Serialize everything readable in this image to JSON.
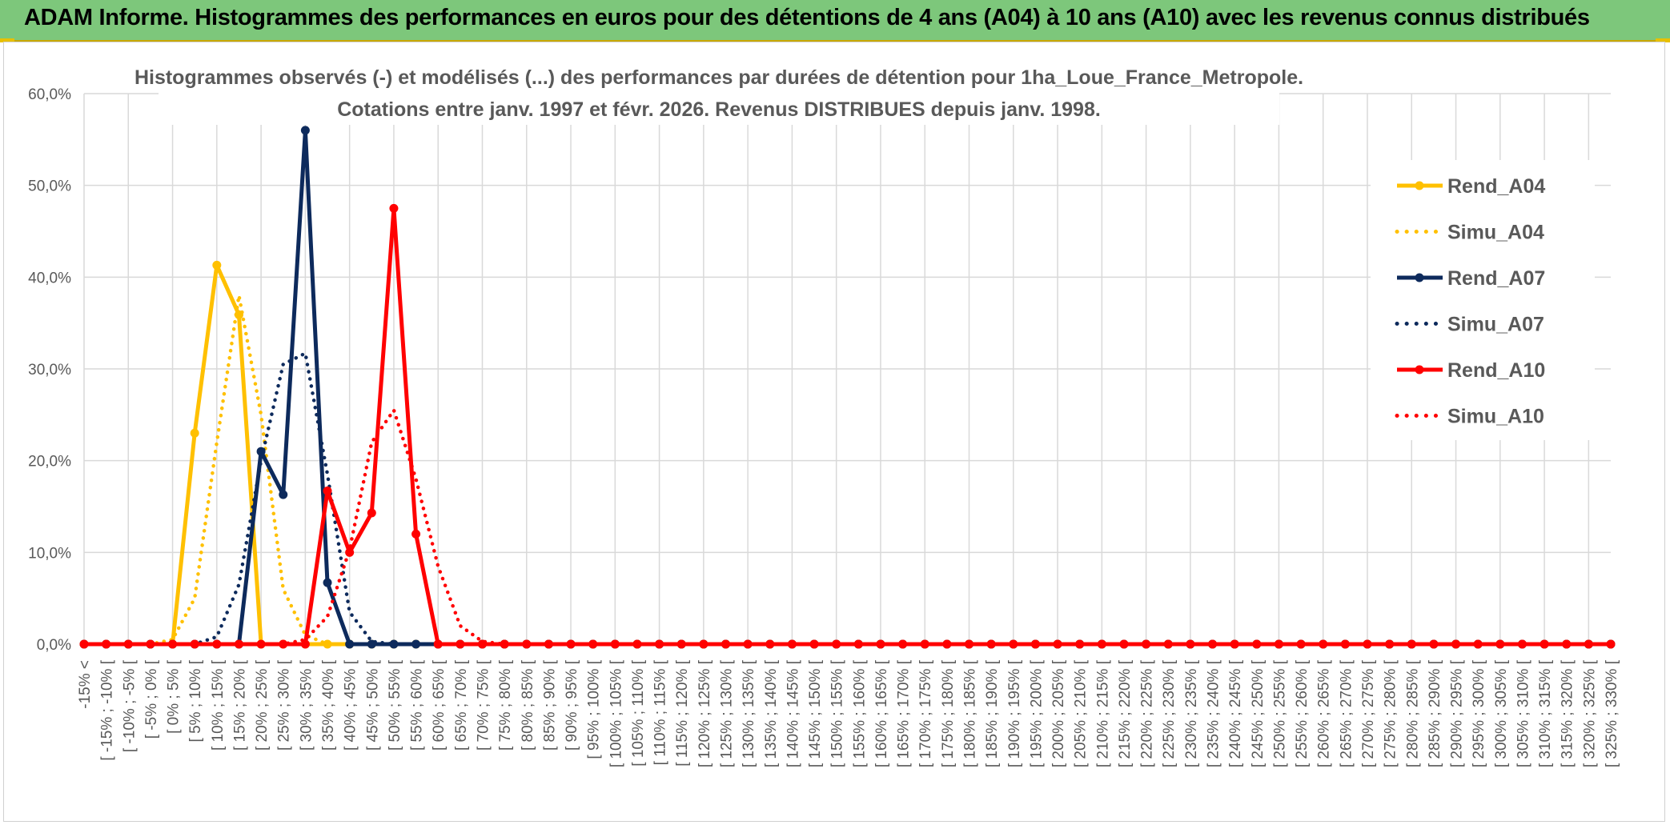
{
  "header": {
    "title": "ADAM Informe. Histogrammes des performances en euros pour des détentions de 4 ans (A04) à 10 ans (A10) avec les revenus connus distribués"
  },
  "chart_data": {
    "type": "line",
    "title_line1": "Histogrammes observés (-) et modélisés (...) des performances par durées de détention pour 1ha_Loue_France_Metropole.",
    "title_line2": "Cotations entre janv. 1997 et févr. 2026. Revenus DISTRIBUES depuis janv. 1998.",
    "ylim": [
      0,
      60
    ],
    "yticks": [
      "0,0%",
      "10,0%",
      "20,0%",
      "30,0%",
      "40,0%",
      "50,0%",
      "60,0%"
    ],
    "grid": true,
    "legend_position": "right",
    "categories": [
      "-15% <",
      "[ -15% ; -10% [",
      "[ -10% ; -5% [",
      "[ -5% ; 0% [",
      "[ 0% ; 5% [",
      "[ 5% ; 10% [",
      "[ 10% ; 15% [",
      "[ 15% ; 20% [",
      "[ 20% ; 25% [",
      "[ 25% ; 30% [",
      "[ 30% ; 35% [",
      "[ 35% ; 40% [",
      "[ 40% ; 45% [",
      "[ 45% ; 50% [",
      "[ 50% ; 55% [",
      "[ 55% ; 60% [",
      "[ 60% ; 65% [",
      "[ 65% ; 70% [",
      "[ 70% ; 75% [",
      "[ 75% ; 80% [",
      "[ 80% ; 85% [",
      "[ 85% ; 90% [",
      "[ 90% ; 95% [",
      "[ 95% ; 100% [",
      "[ 100% ; 105% [",
      "[ 105% ; 110% [",
      "[ 110% ; 115% [",
      "[ 115% ; 120% [",
      "[ 120% ; 125% [",
      "[ 125% ; 130% [",
      "[ 130% ; 135% [",
      "[ 135% ; 140% [",
      "[ 140% ; 145% [",
      "[ 145% ; 150% [",
      "[ 150% ; 155% [",
      "[ 155% ; 160% [",
      "[ 160% ; 165% [",
      "[ 165% ; 170% [",
      "[ 170% ; 175% [",
      "[ 175% ; 180% [",
      "[ 180% ; 185% [",
      "[ 185% ; 190% [",
      "[ 190% ; 195% [",
      "[ 195% ; 200% [",
      "[ 200% ; 205% [",
      "[ 205% ; 210% [",
      "[ 210% ; 215% [",
      "[ 215% ; 220% [",
      "[ 220% ; 225% [",
      "[ 225% ; 230% [",
      "[ 230% ; 235% [",
      "[ 235% ; 240% [",
      "[ 240% ; 245% [",
      "[ 245% ; 250% [",
      "[ 250% ; 255% [",
      "[ 255% ; 260% [",
      "[ 260% ; 265% [",
      "[ 265% ; 270% [",
      "[ 270% ; 275% [",
      "[ 275% ; 280% [",
      "[ 280% ; 285% [",
      "[ 285% ; 290% [",
      "[ 290% ; 295% [",
      "[ 295% ; 300% [",
      "[ 300% ; 305% [",
      "[ 305% ; 310% [",
      "[ 310% ; 315% [",
      "[ 315% ; 320% [",
      "[ 320% ; 325% [",
      "[ 325% ; 330% ["
    ],
    "series": [
      {
        "name": "Rend_A04",
        "style": "solid",
        "marker": true,
        "color": "#FFC000",
        "values": [
          0,
          0,
          0,
          0,
          0,
          23,
          41.3,
          35.9,
          0,
          0,
          0,
          0,
          0,
          0,
          0,
          0,
          0,
          0,
          0,
          0,
          0,
          0,
          0,
          0,
          0,
          0,
          0,
          0,
          0,
          0,
          0,
          0,
          0,
          0,
          0,
          0,
          0,
          0,
          0,
          0,
          0,
          0,
          0,
          0,
          0,
          0,
          0,
          0,
          0,
          0,
          0,
          0,
          0,
          0,
          0,
          0,
          0,
          0,
          0,
          0,
          0,
          0,
          0,
          0,
          0,
          0,
          0,
          0,
          0,
          0
        ]
      },
      {
        "name": "Simu_A04",
        "style": "dotted",
        "marker": false,
        "color": "#FFC000",
        "values": [
          0,
          0,
          0,
          0,
          0.5,
          5,
          22,
          38,
          25,
          6,
          1,
          0,
          0,
          0,
          0,
          0,
          0,
          0,
          0,
          0,
          0,
          0,
          0,
          0,
          0,
          0,
          0,
          0,
          0,
          0,
          0,
          0,
          0,
          0,
          0,
          0,
          0,
          0,
          0,
          0,
          0,
          0,
          0,
          0,
          0,
          0,
          0,
          0,
          0,
          0,
          0,
          0,
          0,
          0,
          0,
          0,
          0,
          0,
          0,
          0,
          0,
          0,
          0,
          0,
          0,
          0,
          0,
          0,
          0,
          0
        ]
      },
      {
        "name": "Rend_A07",
        "style": "solid",
        "marker": true,
        "color": "#0D2A5C",
        "values": [
          0,
          0,
          0,
          0,
          0,
          0,
          0,
          0,
          21,
          16.3,
          56,
          6.7,
          0,
          0,
          0,
          0,
          0,
          0,
          0,
          0,
          0,
          0,
          0,
          0,
          0,
          0,
          0,
          0,
          0,
          0,
          0,
          0,
          0,
          0,
          0,
          0,
          0,
          0,
          0,
          0,
          0,
          0,
          0,
          0,
          0,
          0,
          0,
          0,
          0,
          0,
          0,
          0,
          0,
          0,
          0,
          0,
          0,
          0,
          0,
          0,
          0,
          0,
          0,
          0,
          0,
          0,
          0,
          0,
          0,
          0
        ]
      },
      {
        "name": "Simu_A07",
        "style": "dotted",
        "marker": false,
        "color": "#0D2A5C",
        "values": [
          0,
          0,
          0,
          0,
          0,
          0,
          0.8,
          6.5,
          20,
          30.5,
          31.7,
          18.5,
          3.5,
          0.3,
          0,
          0,
          0,
          0,
          0,
          0,
          0,
          0,
          0,
          0,
          0,
          0,
          0,
          0,
          0,
          0,
          0,
          0,
          0,
          0,
          0,
          0,
          0,
          0,
          0,
          0,
          0,
          0,
          0,
          0,
          0,
          0,
          0,
          0,
          0,
          0,
          0,
          0,
          0,
          0,
          0,
          0,
          0,
          0,
          0,
          0,
          0,
          0,
          0,
          0,
          0,
          0,
          0,
          0,
          0,
          0
        ]
      },
      {
        "name": "Rend_A10",
        "style": "solid",
        "marker": true,
        "color": "#FF0000",
        "values": [
          0,
          0,
          0,
          0,
          0,
          0,
          0,
          0,
          0,
          0,
          0,
          16.7,
          10,
          14.3,
          47.5,
          12,
          0,
          0,
          0,
          0,
          0,
          0,
          0,
          0,
          0,
          0,
          0,
          0,
          0,
          0,
          0,
          0,
          0,
          0,
          0,
          0,
          0,
          0,
          0,
          0,
          0,
          0,
          0,
          0,
          0,
          0,
          0,
          0,
          0,
          0,
          0,
          0,
          0,
          0,
          0,
          0,
          0,
          0,
          0,
          0,
          0,
          0,
          0,
          0,
          0,
          0,
          0,
          0,
          0,
          0
        ]
      },
      {
        "name": "Simu_A10",
        "style": "dotted",
        "marker": false,
        "color": "#FF0000",
        "values": [
          0,
          0,
          0,
          0,
          0,
          0,
          0,
          0,
          0,
          0,
          0.5,
          3,
          10.3,
          22,
          25.5,
          18,
          8.5,
          2,
          0.3,
          0,
          0,
          0,
          0,
          0,
          0,
          0,
          0,
          0,
          0,
          0,
          0,
          0,
          0,
          0,
          0,
          0,
          0,
          0,
          0,
          0,
          0,
          0,
          0,
          0,
          0,
          0,
          0,
          0,
          0,
          0,
          0,
          0,
          0,
          0,
          0,
          0,
          0,
          0,
          0,
          0,
          0,
          0,
          0,
          0,
          0,
          0,
          0,
          0,
          0,
          0
        ]
      }
    ]
  }
}
